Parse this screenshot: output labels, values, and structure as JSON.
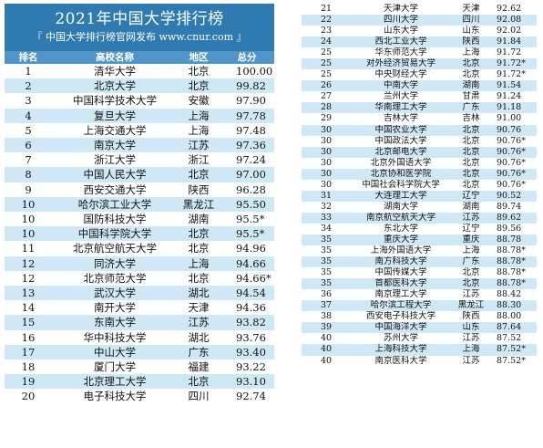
{
  "header": {
    "title": "2021年中国大学排行榜",
    "subtitle": "『 中国大学排行榜官网发布 www.cnur.com 』"
  },
  "columns": {
    "rank": "排名",
    "name": "高校名称",
    "region": "地区",
    "score": "总分"
  },
  "rows_left": [
    {
      "rank": "1",
      "name": "清华大学",
      "region": "北京",
      "score": "100.00"
    },
    {
      "rank": "2",
      "name": "北京大学",
      "region": "北京",
      "score": "99.82"
    },
    {
      "rank": "3",
      "name": "中国科学技术大学",
      "region": "安徽",
      "score": "97.90"
    },
    {
      "rank": "4",
      "name": "复旦大学",
      "region": "上海",
      "score": "97.78"
    },
    {
      "rank": "5",
      "name": "上海交通大学",
      "region": "上海",
      "score": "97.48"
    },
    {
      "rank": "6",
      "name": "南京大学",
      "region": "江苏",
      "score": "97.36"
    },
    {
      "rank": "7",
      "name": "浙江大学",
      "region": "浙江",
      "score": "97.24"
    },
    {
      "rank": "8",
      "name": "中国人民大学",
      "region": "北京",
      "score": "97.00"
    },
    {
      "rank": "9",
      "name": "西安交通大学",
      "region": "陕西",
      "score": "96.28"
    },
    {
      "rank": "10",
      "name": "哈尔滨工业大学",
      "region": "黑龙江",
      "score": "95.50"
    },
    {
      "rank": "10",
      "name": "国防科技大学",
      "region": "湖南",
      "score": "95.5*"
    },
    {
      "rank": "10",
      "name": "中国科学院大学",
      "region": "北京",
      "score": "95.5*"
    },
    {
      "rank": "11",
      "name": "北京航空航天大学",
      "region": "北京",
      "score": "94.96"
    },
    {
      "rank": "12",
      "name": "同济大学",
      "region": "上海",
      "score": "94.66"
    },
    {
      "rank": "12",
      "name": "北京师范大学",
      "region": "北京",
      "score": "94.66*"
    },
    {
      "rank": "13",
      "name": "武汉大学",
      "region": "湖北",
      "score": "94.54"
    },
    {
      "rank": "14",
      "name": "南开大学",
      "region": "天津",
      "score": "94.36"
    },
    {
      "rank": "15",
      "name": "东南大学",
      "region": "江苏",
      "score": "93.82"
    },
    {
      "rank": "16",
      "name": "华中科技大学",
      "region": "湖北",
      "score": "93.76"
    },
    {
      "rank": "17",
      "name": "中山大学",
      "region": "广东",
      "score": "93.40"
    },
    {
      "rank": "18",
      "name": "厦门大学",
      "region": "福建",
      "score": "93.22"
    },
    {
      "rank": "19",
      "name": "北京理工大学",
      "region": "北京",
      "score": "93.10"
    },
    {
      "rank": "20",
      "name": "电子科技大学",
      "region": "四川",
      "score": "92.74"
    }
  ],
  "rows_right": [
    {
      "rank": "21",
      "name": "天津大学",
      "region": "天津",
      "score": "92.62"
    },
    {
      "rank": "22",
      "name": "四川大学",
      "region": "四川",
      "score": "92.08"
    },
    {
      "rank": "23",
      "name": "山东大学",
      "region": "山东",
      "score": "92.02"
    },
    {
      "rank": "24",
      "name": "西北工业大学",
      "region": "陕西",
      "score": "91.84"
    },
    {
      "rank": "25",
      "name": "华东师范大学",
      "region": "上海",
      "score": "91.72"
    },
    {
      "rank": "25",
      "name": "对外经济贸易大学",
      "region": "北京",
      "score": "91.72*"
    },
    {
      "rank": "25",
      "name": "中央财经大学",
      "region": "北京",
      "score": "91.72*"
    },
    {
      "rank": "26",
      "name": "中南大学",
      "region": "湖南",
      "score": "91.54"
    },
    {
      "rank": "27",
      "name": "兰州大学",
      "region": "甘肃",
      "score": "91.24"
    },
    {
      "rank": "28",
      "name": "华南理工大学",
      "region": "广东",
      "score": "91.18"
    },
    {
      "rank": "29",
      "name": "吉林大学",
      "region": "吉林",
      "score": "91.00"
    },
    {
      "rank": "30",
      "name": "中国农业大学",
      "region": "北京",
      "score": "90.76"
    },
    {
      "rank": "30",
      "name": "中国政法大学",
      "region": "北京",
      "score": "90.76*"
    },
    {
      "rank": "30",
      "name": "北京邮电大学",
      "region": "北京",
      "score": "90.76*"
    },
    {
      "rank": "30",
      "name": "北京外国语大学",
      "region": "北京",
      "score": "90.76*"
    },
    {
      "rank": "30",
      "name": "北京协和医学院",
      "region": "北京",
      "score": "90.76*"
    },
    {
      "rank": "30",
      "name": "中国社会科学院大学",
      "region": "北京",
      "score": "90.76*"
    },
    {
      "rank": "31",
      "name": "大连理工大学",
      "region": "辽宁",
      "score": "90.52"
    },
    {
      "rank": "32",
      "name": "湖南大学",
      "region": "湖南",
      "score": "89.74"
    },
    {
      "rank": "33",
      "name": "南京航空航天大学",
      "region": "江苏",
      "score": "89.62"
    },
    {
      "rank": "34",
      "name": "东北大学",
      "region": "辽宁",
      "score": "89.56"
    },
    {
      "rank": "35",
      "name": "重庆大学",
      "region": "重庆",
      "score": "88.78"
    },
    {
      "rank": "35",
      "name": "上海外国语大学",
      "region": "上海",
      "score": "88.78*"
    },
    {
      "rank": "35",
      "name": "南方科技大学",
      "region": "广东",
      "score": "88.78*"
    },
    {
      "rank": "35",
      "name": "中国传媒大学",
      "region": "北京",
      "score": "88.78*"
    },
    {
      "rank": "35",
      "name": "首都医科大学",
      "region": "北京",
      "score": "88.78*"
    },
    {
      "rank": "36",
      "name": "南京理工大学",
      "region": "江苏",
      "score": "88.42"
    },
    {
      "rank": "37",
      "name": "哈尔滨工程大学",
      "region": "黑龙江",
      "score": "88.30"
    },
    {
      "rank": "38",
      "name": "西安电子科技大学",
      "region": "陕西",
      "score": "88.00"
    },
    {
      "rank": "39",
      "name": "中国海洋大学",
      "region": "山东",
      "score": "87.64"
    },
    {
      "rank": "40",
      "name": "苏州大学",
      "region": "江苏",
      "score": "87.52"
    },
    {
      "rank": "40",
      "name": "上海科技大学",
      "region": "上海",
      "score": "87.52*"
    },
    {
      "rank": "40",
      "name": "南京医科大学",
      "region": "江苏",
      "score": "87.52*"
    }
  ]
}
